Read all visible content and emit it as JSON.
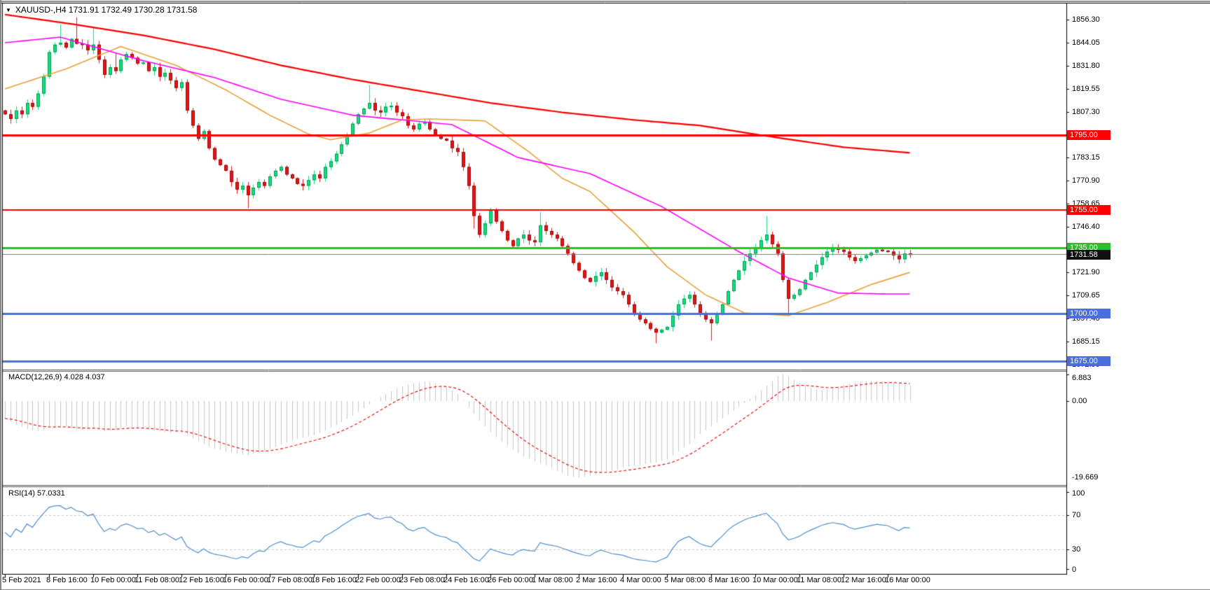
{
  "header": {
    "dropdown_icon": "▼",
    "symbol_line": "XAUUSD-,H4  1731.91 1732.49 1730.28 1731.58",
    "symbol": "XAUUSD-",
    "timeframe": "H4",
    "open": "1731.91",
    "high": "1732.49",
    "low": "1730.28",
    "close": "1731.58"
  },
  "colors": {
    "up_fill": "#0ee07e",
    "up_border": "#0a9a56",
    "down_fill": "#e81414",
    "down_border": "#9e0b0b",
    "ma_red": "#ff0000",
    "ma_magenta": "#ff00ff",
    "ma_orange": "#e8a23c",
    "hline_red": "#ff0000",
    "hline_green": "#2dbe2d",
    "hline_blue": "#4a6fdc",
    "current_line": "#808080",
    "current_badge": "#111111",
    "macd_hist": "#c6c6c6",
    "macd_signal": "#ee1111",
    "rsi_line": "#4e8fd0",
    "level_dash": "#c9c9c9",
    "frame": "#000000",
    "outer_border": "#848484",
    "axis_text": "#000000"
  },
  "price_axis": {
    "ticks": [
      "1856.30",
      "1844.05",
      "1831.80",
      "1819.55",
      "1807.30",
      "1783.15",
      "1770.90",
      "1758.65",
      "1746.40",
      "1721.90",
      "1709.65",
      "1697.40",
      "1685.15",
      "1672.90"
    ],
    "tick_values": [
      1856.3,
      1844.05,
      1831.8,
      1819.55,
      1807.3,
      1783.15,
      1770.9,
      1758.65,
      1746.4,
      1721.9,
      1709.65,
      1697.4,
      1685.15,
      1672.9
    ],
    "current": {
      "label": "1731.58",
      "price": 1731.58
    }
  },
  "hlines": [
    {
      "label": "1795.00",
      "price": 1795.0,
      "color": "#ff0000",
      "width": 3
    },
    {
      "label": "1755.00",
      "price": 1755.0,
      "color": "#ff0000",
      "width": 2
    },
    {
      "label": "1735.00",
      "price": 1735.0,
      "color": "#2dbe2d",
      "width": 3
    },
    {
      "label": "1700.00",
      "price": 1700.0,
      "color": "#4a6fdc",
      "width": 3
    },
    {
      "label": "1675.00",
      "price": 1675.0,
      "color": "#4a6fdc",
      "width": 3
    }
  ],
  "indicators": {
    "macd": {
      "title": "MACD(12,26,9)",
      "values": "4.028 4.037",
      "axis": [
        "6.883",
        "0.00",
        "-19.669"
      ],
      "axis_values": [
        6.883,
        0.0,
        -19.669
      ]
    },
    "rsi": {
      "title": "RSI(14)",
      "value": "57.0331",
      "axis": [
        "100",
        "70",
        "30",
        "0"
      ],
      "axis_values": [
        100,
        70,
        30,
        0
      ],
      "levels": [
        70,
        30
      ]
    }
  },
  "chart_data": {
    "type": "candlestick",
    "symbol": "XAUUSD-",
    "timeframe": "H4",
    "title": "XAUUSD-,H4",
    "ylim": [
      1666,
      1862
    ],
    "time_labels": [
      "5 Feb 2021",
      "8 Feb 16:00",
      "10 Feb 00:00",
      "11 Feb 08:00",
      "12 Feb 16:00",
      "16 Feb 00:00",
      "17 Feb 08:00",
      "18 Feb 16:00",
      "22 Feb 00:00",
      "23 Feb 08:00",
      "24 Feb 16:00",
      "26 Feb 00:00",
      "1 Mar 08:00",
      "2 Mar 16:00",
      "4 Mar 00:00",
      "5 Mar 08:00",
      "8 Mar 16:00",
      "10 Mar 00:00",
      "11 Mar 08:00",
      "12 Mar 16:00",
      "16 Mar 00:00"
    ],
    "bars_per_tick": 8,
    "open_first": 1808,
    "closes": [
      1806,
      1803.5,
      1808,
      1806,
      1812,
      1810,
      1817,
      1826,
      1839,
      1843,
      1844,
      1841.5,
      1846,
      1843.5,
      1843,
      1840,
      1843,
      1835,
      1827,
      1831,
      1829,
      1835,
      1838,
      1836,
      1833,
      1833.5,
      1829,
      1831,
      1826,
      1828,
      1824,
      1820,
      1823,
      1808,
      1800,
      1793,
      1797,
      1788,
      1782,
      1779,
      1776,
      1770,
      1766,
      1768,
      1763,
      1767,
      1770,
      1768,
      1773,
      1776,
      1778,
      1774,
      1772,
      1769,
      1768,
      1771,
      1774,
      1772,
      1778,
      1781,
      1785,
      1790,
      1795,
      1801,
      1806,
      1809,
      1812,
      1808,
      1807,
      1810,
      1810.5,
      1807,
      1805,
      1800,
      1798,
      1801,
      1802,
      1798,
      1795,
      1793,
      1792,
      1788,
      1786,
      1778,
      1768,
      1752,
      1742,
      1748,
      1755,
      1749,
      1744,
      1739,
      1736,
      1740,
      1742,
      1739,
      1738,
      1747,
      1744,
      1742,
      1740,
      1736,
      1732,
      1727,
      1723,
      1719,
      1717,
      1720,
      1722,
      1718,
      1714,
      1712,
      1710,
      1705,
      1700,
      1697,
      1695,
      1692,
      1690,
      1691.5,
      1693,
      1699,
      1705,
      1708,
      1710,
      1705,
      1700,
      1697,
      1695,
      1700,
      1705,
      1712,
      1718,
      1723,
      1728,
      1732,
      1735,
      1739,
      1742,
      1737,
      1732,
      1718,
      1708,
      1710,
      1713,
      1718,
      1722,
      1726,
      1730,
      1733,
      1735,
      1734,
      1733,
      1730,
      1728,
      1729.5,
      1731,
      1732.5,
      1734,
      1733.5,
      1733,
      1731,
      1729,
      1732,
      1731.58
    ],
    "wick_spikes": {
      "10": [
        9,
        0
      ],
      "13": [
        11,
        0
      ],
      "16": [
        7,
        0
      ],
      "20": [
        6,
        0
      ],
      "44": [
        0,
        5
      ],
      "66": [
        9,
        0
      ],
      "85": [
        0,
        5
      ],
      "97": [
        5,
        0
      ],
      "118": [
        0,
        5
      ],
      "128": [
        0,
        8
      ],
      "138": [
        8,
        0
      ],
      "142": [
        0,
        8
      ]
    },
    "ma_red_anchors": [
      [
        0,
        1859
      ],
      [
        12,
        1854
      ],
      [
        25,
        1848
      ],
      [
        38,
        1840.5
      ],
      [
        50,
        1832
      ],
      [
        63,
        1824.5
      ],
      [
        76,
        1818
      ],
      [
        88,
        1812
      ],
      [
        101,
        1807
      ],
      [
        114,
        1803
      ],
      [
        126,
        1800
      ],
      [
        139,
        1794
      ],
      [
        152,
        1788.5
      ],
      [
        164,
        1785.5
      ]
    ],
    "ma_magenta_anchors": [
      [
        0,
        1844
      ],
      [
        10,
        1847
      ],
      [
        25,
        1834.5
      ],
      [
        38,
        1825.5
      ],
      [
        50,
        1814
      ],
      [
        63,
        1805.5
      ],
      [
        81,
        1800.5
      ],
      [
        93,
        1783
      ],
      [
        106,
        1774.5
      ],
      [
        119,
        1757
      ],
      [
        133,
        1733
      ],
      [
        142,
        1719
      ],
      [
        151,
        1711
      ],
      [
        160,
        1710.5
      ],
      [
        164,
        1710.5
      ]
    ],
    "ma_orange_anchors": [
      [
        0,
        1819.5
      ],
      [
        11,
        1830
      ],
      [
        21,
        1842
      ],
      [
        31,
        1832
      ],
      [
        40,
        1819
      ],
      [
        48,
        1805.5
      ],
      [
        55,
        1795.5
      ],
      [
        59,
        1792.5
      ],
      [
        66,
        1796
      ],
      [
        72,
        1803
      ],
      [
        77,
        1803.5
      ],
      [
        87,
        1802.5
      ],
      [
        95,
        1786
      ],
      [
        101,
        1772
      ],
      [
        106,
        1765
      ],
      [
        114,
        1743.5
      ],
      [
        120,
        1725
      ],
      [
        127,
        1710
      ],
      [
        134,
        1700.5
      ],
      [
        142,
        1699
      ],
      [
        149,
        1706
      ],
      [
        157,
        1715.5
      ],
      [
        164,
        1722
      ]
    ],
    "macd_main_anchors": [
      [
        0,
        -4.5
      ],
      [
        2,
        -6
      ],
      [
        4,
        -7.2
      ],
      [
        6,
        -7.8
      ],
      [
        8,
        -7
      ],
      [
        10,
        -6.5
      ],
      [
        12,
        -7
      ],
      [
        14,
        -7.4
      ],
      [
        16,
        -7
      ],
      [
        18,
        -7.8
      ],
      [
        20,
        -7.2
      ],
      [
        22,
        -6.5
      ],
      [
        24,
        -6.8
      ],
      [
        26,
        -7.4
      ],
      [
        28,
        -7.8
      ],
      [
        30,
        -8.2
      ],
      [
        32,
        -8
      ],
      [
        34,
        -9.5
      ],
      [
        36,
        -11
      ],
      [
        38,
        -12.2
      ],
      [
        40,
        -13
      ],
      [
        42,
        -13.6
      ],
      [
        44,
        -13.9
      ],
      [
        46,
        -13.2
      ],
      [
        48,
        -12.4
      ],
      [
        50,
        -11.2
      ],
      [
        52,
        -10.2
      ],
      [
        54,
        -9.4
      ],
      [
        56,
        -8.8
      ],
      [
        58,
        -7.6
      ],
      [
        60,
        -6.2
      ],
      [
        62,
        -4.6
      ],
      [
        64,
        -2.8
      ],
      [
        66,
        -0.8
      ],
      [
        68,
        1.0
      ],
      [
        70,
        2.6
      ],
      [
        72,
        3.8
      ],
      [
        74,
        4.6
      ],
      [
        76,
        5.0
      ],
      [
        78,
        4.6
      ],
      [
        80,
        3.6
      ],
      [
        82,
        1.8
      ],
      [
        84,
        -1.5
      ],
      [
        86,
        -5
      ],
      [
        88,
        -8
      ],
      [
        90,
        -10.5
      ],
      [
        92,
        -12.5
      ],
      [
        94,
        -14.2
      ],
      [
        96,
        -15.5
      ],
      [
        98,
        -16.5
      ],
      [
        100,
        -18
      ],
      [
        102,
        -19.3
      ],
      [
        104,
        -19.669
      ],
      [
        106,
        -19.2
      ],
      [
        108,
        -18.6
      ],
      [
        110,
        -18
      ],
      [
        112,
        -17.2
      ],
      [
        114,
        -16.8
      ],
      [
        116,
        -16.2
      ],
      [
        118,
        -15.8
      ],
      [
        120,
        -15
      ],
      [
        122,
        -13
      ],
      [
        124,
        -11
      ],
      [
        126,
        -8.5
      ],
      [
        128,
        -6.5
      ],
      [
        130,
        -4.5
      ],
      [
        132,
        -2.5
      ],
      [
        134,
        -0.5
      ],
      [
        136,
        1.5
      ],
      [
        138,
        4
      ],
      [
        140,
        6.3
      ],
      [
        141,
        6.883
      ],
      [
        142,
        6.2
      ],
      [
        144,
        4.6
      ],
      [
        146,
        3.4
      ],
      [
        148,
        2.8
      ],
      [
        150,
        3.4
      ],
      [
        152,
        4.1
      ],
      [
        154,
        4.7
      ],
      [
        156,
        5.1
      ],
      [
        158,
        5.2
      ],
      [
        160,
        4.9
      ],
      [
        162,
        4.4
      ],
      [
        164,
        4.028
      ]
    ]
  }
}
